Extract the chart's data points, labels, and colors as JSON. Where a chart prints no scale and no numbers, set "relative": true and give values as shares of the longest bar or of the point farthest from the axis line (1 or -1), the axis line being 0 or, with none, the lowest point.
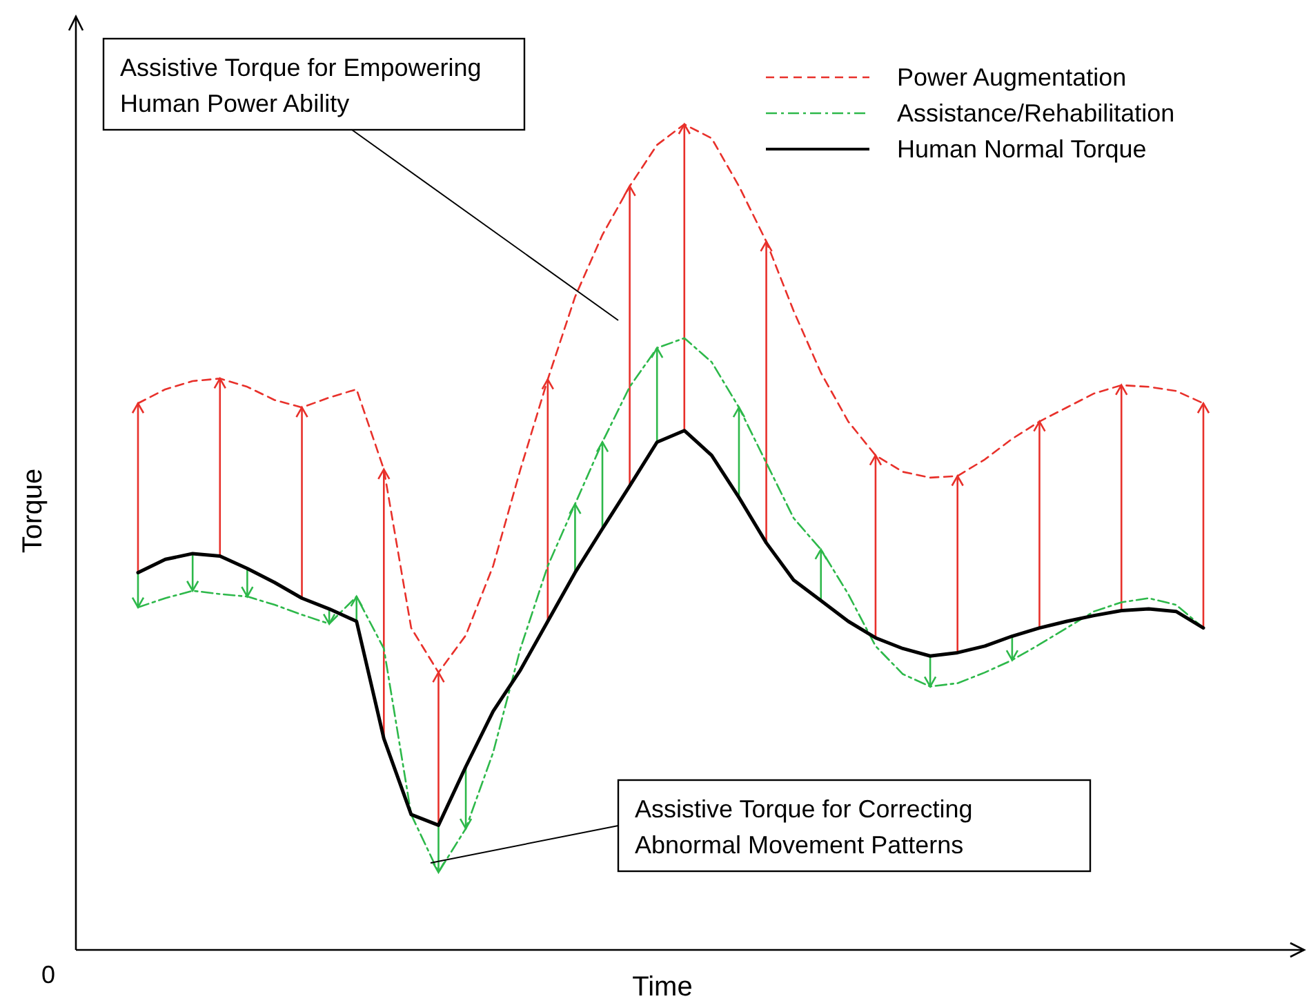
{
  "chart_data": {
    "type": "line",
    "relative": true,
    "xlabel": "Time",
    "ylabel": "Torque",
    "legend": "top right",
    "categories": [
      null,
      null,
      null,
      null,
      null,
      null,
      null,
      null,
      null,
      null,
      null,
      null,
      null,
      null,
      null,
      null,
      null,
      null,
      null,
      null,
      null,
      null,
      null,
      null,
      null,
      null,
      null,
      null,
      null,
      null,
      null,
      null,
      null,
      null,
      null,
      null,
      null,
      null,
      null,
      null
    ],
    "series": [
      {
        "name": "Power Augmentation",
        "color": "#e8302a",
        "line_style": "dashed",
        "values": [
          0.662,
          0.679,
          0.689,
          0.692,
          0.682,
          0.666,
          0.657,
          0.669,
          0.679,
          0.582,
          0.39,
          0.336,
          0.381,
          0.465,
          0.582,
          0.691,
          0.791,
          0.866,
          0.925,
          0.975,
          1.0,
          0.983,
          0.925,
          0.858,
          0.774,
          0.699,
          0.64,
          0.599,
          0.579,
          0.572,
          0.574,
          0.594,
          0.619,
          0.64,
          0.657,
          0.674,
          0.684,
          0.682,
          0.677,
          0.662
        ]
      },
      {
        "name": "Assistance/Rehabilitation",
        "color": "#2db84a",
        "line_style": "dashdot",
        "values": [
          0.415,
          0.426,
          0.435,
          0.431,
          0.428,
          0.418,
          0.406,
          0.395,
          0.428,
          0.365,
          0.164,
          0.094,
          0.147,
          0.239,
          0.365,
          0.465,
          0.54,
          0.615,
          0.682,
          0.729,
          0.741,
          0.712,
          0.657,
          0.59,
          0.523,
          0.485,
          0.431,
          0.368,
          0.334,
          0.319,
          0.323,
          0.336,
          0.351,
          0.37,
          0.39,
          0.41,
          0.421,
          0.426,
          0.418,
          0.39
        ]
      },
      {
        "name": "Human Normal Torque",
        "color": "#000000",
        "line_style": "solid",
        "values": [
          0.457,
          0.473,
          0.48,
          0.477,
          0.462,
          0.445,
          0.426,
          0.413,
          0.398,
          0.256,
          0.164,
          0.151,
          0.222,
          0.289,
          0.339,
          0.398,
          0.457,
          0.51,
          0.562,
          0.615,
          0.629,
          0.599,
          0.548,
          0.493,
          0.448,
          0.423,
          0.398,
          0.378,
          0.365,
          0.356,
          0.36,
          0.368,
          0.38,
          0.39,
          0.398,
          0.405,
          0.411,
          0.413,
          0.41,
          0.39
        ]
      }
    ],
    "annotations": [
      "0",
      "Assistive Torque for Empowering\nHuman Power Ability",
      "Assistive Torque for Correcting\nAbnormal Movement Patterns"
    ]
  }
}
